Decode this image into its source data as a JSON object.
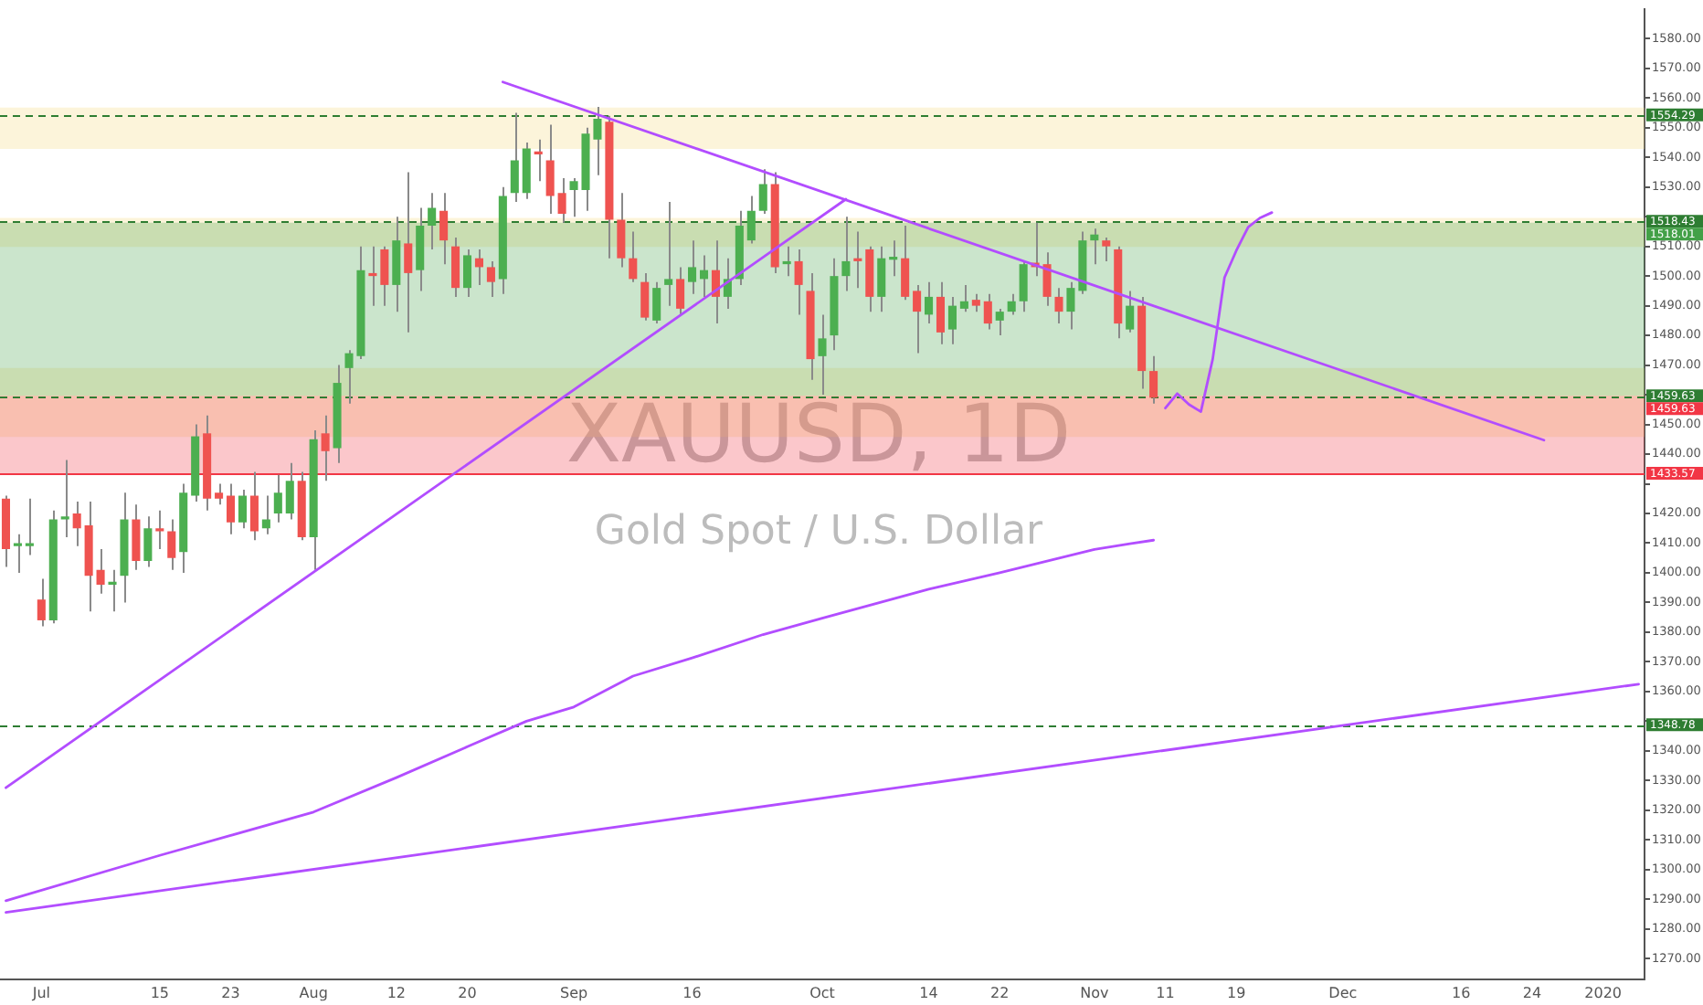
{
  "chart_data": {
    "type": "candlestick",
    "title": "XAUUSD, 1D",
    "subtitle": "Gold Spot / U.S. Dollar",
    "categories": [
      null,
      null,
      null,
      "Jul",
      null,
      null,
      null,
      null,
      null,
      null,
      null,
      null,
      null,
      "15",
      null,
      null,
      null,
      null,
      null,
      "23",
      null,
      null,
      null,
      null,
      null,
      null,
      "Aug",
      null,
      null,
      null,
      null,
      null,
      null,
      "12",
      null,
      null,
      null,
      null,
      null,
      "20",
      null,
      null,
      null,
      null,
      null,
      null,
      null,
      null,
      "Sep",
      null,
      null,
      null,
      null,
      null,
      null,
      null,
      null,
      null,
      "16",
      null,
      null,
      null,
      null,
      null,
      null,
      null,
      null,
      null,
      null,
      "Oct",
      null,
      null,
      null,
      null,
      null,
      null,
      null,
      null,
      "14",
      null,
      null,
      null,
      null,
      null,
      "22",
      null,
      null,
      null,
      null,
      null,
      null,
      null,
      "Nov",
      null,
      null,
      null,
      null,
      null,
      "11",
      null,
      null,
      null,
      null,
      null,
      "19",
      null,
      null,
      null,
      null,
      null,
      null,
      null,
      null,
      "Dec",
      null,
      null,
      null,
      null,
      null,
      null,
      null,
      null,
      null,
      "16",
      null,
      null,
      null,
      null,
      null,
      "24",
      null,
      null,
      null,
      null,
      null,
      "2020",
      null,
      null,
      null
    ],
    "ohlc": [
      [
        1425,
        1426,
        1402,
        1408
      ],
      [
        1409,
        1413,
        1400,
        1410
      ],
      [
        1409,
        1425,
        1406,
        1410
      ],
      [
        1391,
        1398,
        1382,
        1384
      ],
      [
        1384,
        1421,
        1383,
        1418
      ],
      [
        1418,
        1438,
        1412,
        1419
      ],
      [
        1420,
        1424,
        1409,
        1415
      ],
      [
        1416,
        1424,
        1387,
        1399
      ],
      [
        1401,
        1408,
        1393,
        1396
      ],
      [
        1396,
        1401,
        1387,
        1397
      ],
      [
        1399,
        1427,
        1390,
        1418
      ],
      [
        1418,
        1423,
        1401,
        1404
      ],
      [
        1404,
        1419,
        1402,
        1415
      ],
      [
        1415,
        1421,
        1408,
        1414
      ],
      [
        1414,
        1418,
        1401,
        1405
      ],
      [
        1407,
        1430,
        1400,
        1427
      ],
      [
        1426,
        1450,
        1424,
        1446
      ],
      [
        1447,
        1453,
        1421,
        1425
      ],
      [
        1427,
        1430,
        1423,
        1425
      ],
      [
        1426,
        1430,
        1413,
        1417
      ],
      [
        1417,
        1428,
        1415,
        1426
      ],
      [
        1426,
        1434,
        1411,
        1414
      ],
      [
        1415,
        1426,
        1413,
        1418
      ],
      [
        1420,
        1433,
        1417,
        1427
      ],
      [
        1420,
        1437,
        1418,
        1431
      ],
      [
        1431,
        1434,
        1411,
        1412
      ],
      [
        1412,
        1448,
        1401,
        1445
      ],
      [
        1447,
        1453,
        1431,
        1441
      ],
      [
        1442,
        1470,
        1437,
        1464
      ],
      [
        1469,
        1475,
        1457,
        1474
      ],
      [
        1473,
        1510,
        1472,
        1502
      ],
      [
        1501,
        1510,
        1490,
        1500
      ],
      [
        1509,
        1510,
        1490,
        1497
      ],
      [
        1497,
        1520,
        1488,
        1512
      ],
      [
        1511,
        1535,
        1481,
        1501
      ],
      [
        1502,
        1523,
        1495,
        1517
      ],
      [
        1517,
        1528,
        1509,
        1523
      ],
      [
        1522,
        1528,
        1504,
        1512
      ],
      [
        1510,
        1513,
        1493,
        1496
      ],
      [
        1496,
        1509,
        1493,
        1507
      ],
      [
        1506,
        1509,
        1497,
        1503
      ],
      [
        1503,
        1505,
        1493,
        1498
      ],
      [
        1499,
        1530,
        1494,
        1527
      ],
      [
        1528,
        1555,
        1525,
        1539
      ],
      [
        1528,
        1545,
        1526,
        1543
      ],
      [
        1542,
        1546,
        1532,
        1541
      ],
      [
        1539,
        1551,
        1521,
        1527
      ],
      [
        1528,
        1533,
        1518,
        1521
      ],
      [
        1529,
        1533,
        1520,
        1532
      ],
      [
        1529,
        1550,
        1522,
        1548
      ],
      [
        1546,
        1557,
        1534,
        1553
      ],
      [
        1552,
        1554,
        1506,
        1519
      ],
      [
        1519,
        1528,
        1503,
        1506
      ],
      [
        1506,
        1515,
        1498,
        1499
      ],
      [
        1498,
        1501,
        1485,
        1486
      ],
      [
        1485,
        1498,
        1484,
        1496
      ],
      [
        1497,
        1525,
        1490,
        1499
      ],
      [
        1499,
        1503,
        1487,
        1489
      ],
      [
        1498,
        1512,
        1494,
        1503
      ],
      [
        1499,
        1507,
        1493,
        1502
      ],
      [
        1502,
        1512,
        1484,
        1493
      ],
      [
        1493,
        1506,
        1489,
        1499
      ],
      [
        1499,
        1522,
        1497,
        1517
      ],
      [
        1512,
        1527,
        1511,
        1522
      ],
      [
        1522,
        1536,
        1521,
        1531
      ],
      [
        1531,
        1535,
        1501,
        1503
      ],
      [
        1504,
        1510,
        1500,
        1505
      ],
      [
        1505,
        1509,
        1487,
        1497
      ],
      [
        1495,
        1501,
        1465,
        1472
      ],
      [
        1473,
        1487,
        1460,
        1479
      ],
      [
        1480,
        1506,
        1475,
        1500
      ],
      [
        1500,
        1520,
        1495,
        1505
      ],
      [
        1506,
        1515,
        1496,
        1505
      ],
      [
        1509,
        1510,
        1488,
        1493
      ],
      [
        1493,
        1510,
        1488,
        1506
      ],
      [
        1505.5,
        1512,
        1500,
        1506.5
      ],
      [
        1506,
        1517,
        1492,
        1493
      ],
      [
        1495,
        1497,
        1474,
        1488
      ],
      [
        1487,
        1498,
        1484,
        1493
      ],
      [
        1493,
        1498,
        1477,
        1481
      ],
      [
        1482,
        1493,
        1477,
        1490
      ],
      [
        1489,
        1497,
        1488,
        1491.5
      ],
      [
        1492,
        1494,
        1488,
        1490
      ],
      [
        1491.5,
        1494,
        1482,
        1484
      ],
      [
        1485,
        1489,
        1480,
        1488
      ],
      [
        1488,
        1494,
        1487,
        1491.5
      ],
      [
        1491.5,
        1505,
        1488,
        1504
      ],
      [
        1504.5,
        1518,
        1500,
        1503
      ],
      [
        1504,
        1508,
        1490,
        1493
      ],
      [
        1493,
        1496,
        1484,
        1488
      ],
      [
        1488,
        1498,
        1482,
        1496
      ],
      [
        1495,
        1515,
        1494,
        1512
      ],
      [
        1512,
        1516,
        1504,
        1514
      ],
      [
        1512,
        1513,
        1505,
        1510
      ],
      [
        1509,
        1510,
        1479,
        1484
      ],
      [
        1482,
        1495,
        1481,
        1490
      ],
      [
        1490,
        1493,
        1462,
        1468
      ],
      [
        1468,
        1473,
        1457,
        1459
      ],
      null,
      null,
      null,
      null,
      null,
      null,
      null,
      null,
      null,
      null,
      null,
      null,
      null,
      null,
      null,
      null,
      null,
      null,
      null,
      null,
      null,
      null,
      null,
      null,
      null,
      null,
      null,
      null,
      null,
      null,
      null,
      null,
      null,
      null,
      null,
      null,
      null,
      null,
      null,
      null,
      null
    ],
    "colors": [
      "#ef5350",
      "#4caf50",
      "#4caf50",
      "#ef5350",
      "#4caf50",
      "#4caf50",
      "#ef5350",
      "#ef5350",
      "#ef5350",
      "#4caf50",
      "#4caf50",
      "#ef5350",
      "#4caf50",
      "#ef5350",
      "#ef5350",
      "#4caf50",
      "#4caf50",
      "#ef5350",
      "#ef5350",
      "#ef5350",
      "#4caf50",
      "#ef5350",
      "#4caf50",
      "#4caf50",
      "#4caf50",
      "#ef5350",
      "#4caf50",
      "#ef5350",
      "#4caf50",
      "#4caf50",
      "#4caf50",
      "#ef5350",
      "#ef5350",
      "#4caf50",
      "#ef5350",
      "#4caf50",
      "#4caf50",
      "#ef5350",
      "#ef5350",
      "#4caf50",
      "#ef5350",
      "#ef5350",
      "#4caf50",
      "#4caf50",
      "#4caf50",
      "#ef5350",
      "#ef5350",
      "#ef5350",
      "#4caf50",
      "#4caf50",
      "#4caf50",
      "#ef5350",
      "#ef5350",
      "#ef5350",
      "#ef5350",
      "#4caf50",
      "#4caf50",
      "#ef5350",
      "#4caf50",
      "#4caf50",
      "#ef5350",
      "#4caf50",
      "#4caf50",
      "#4caf50",
      "#4caf50",
      "#ef5350",
      "#4caf50",
      "#ef5350",
      "#ef5350",
      "#4caf50",
      "#4caf50",
      "#4caf50",
      "#ef5350",
      "#ef5350",
      "#4caf50",
      "#4caf50",
      "#ef5350",
      "#ef5350",
      "#4caf50",
      "#ef5350",
      "#4caf50",
      "#4caf50",
      "#ef5350",
      "#ef5350",
      "#4caf50",
      "#4caf50",
      "#4caf50",
      "#ef5350",
      "#ef5350",
      "#ef5350",
      "#4caf50",
      "#4caf50",
      "#4caf50",
      "#ef5350",
      "#ef5350",
      "#4caf50",
      "#ef5350",
      "#ef5350",
      null,
      null,
      null,
      null,
      null,
      null,
      null,
      null,
      null,
      null,
      null,
      null,
      null,
      null,
      null,
      null,
      null,
      null,
      null,
      null,
      null,
      null,
      null,
      null,
      null,
      null,
      null,
      null,
      null,
      null,
      null,
      null,
      null,
      null,
      null,
      null,
      null,
      null,
      null,
      null,
      null
    ],
    "series": [
      {
        "type": "line",
        "color": "#b24dff",
        "values": [
          null,
          null,
          null,
          null,
          null,
          null,
          null,
          null,
          null,
          null,
          null,
          null,
          null,
          null,
          null,
          null,
          null,
          null,
          null,
          null,
          null,
          null,
          null,
          null,
          null,
          null,
          null,
          null,
          null,
          null,
          null,
          null,
          null,
          null,
          null,
          null,
          null,
          null,
          null,
          null,
          null,
          null,
          1565.4,
          null,
          null,
          null,
          null,
          null,
          null,
          null,
          null,
          null,
          null,
          null,
          null,
          null,
          null,
          null,
          null,
          null,
          null,
          null,
          null,
          null,
          null,
          null,
          null,
          null,
          null,
          null,
          null,
          null,
          null,
          null,
          null,
          null,
          null,
          null,
          null,
          null,
          null,
          null,
          null,
          null,
          null,
          null,
          null,
          null,
          null,
          null,
          null,
          null,
          null,
          null,
          null,
          null,
          null,
          null,
          null,
          null,
          null,
          null,
          null,
          null,
          null,
          null,
          null,
          null,
          null,
          null,
          null,
          null,
          null,
          null,
          null,
          null,
          null,
          null,
          null,
          null,
          null,
          null,
          null,
          null,
          null,
          null,
          null,
          null,
          null,
          null,
          1444.7,
          null,
          null,
          null,
          null,
          null,
          null,
          null,
          null
        ]
      },
      {
        "type": "line",
        "color": "#b24dff",
        "values": [
          1327.6,
          null,
          null,
          null,
          null,
          null,
          null,
          null,
          null,
          null,
          null,
          null,
          null,
          null,
          null,
          null,
          null,
          null,
          null,
          null,
          null,
          null,
          null,
          null,
          null,
          null,
          null,
          null,
          null,
          null,
          null,
          null,
          null,
          null,
          null,
          null,
          null,
          null,
          null,
          null,
          null,
          null,
          null,
          null,
          null,
          null,
          null,
          null,
          null,
          null,
          null,
          null,
          null,
          null,
          null,
          null,
          null,
          null,
          null,
          null,
          null,
          null,
          null,
          null,
          null,
          null,
          null,
          null,
          null,
          null,
          null,
          1525.9,
          null,
          null,
          null,
          null,
          null,
          null,
          null,
          null,
          null,
          null,
          null,
          null,
          null,
          null,
          null,
          null,
          null,
          null,
          null,
          null,
          null,
          null,
          null,
          null,
          null,
          null,
          null,
          null,
          null,
          null,
          null,
          null,
          null,
          null,
          null,
          null,
          null,
          null,
          null,
          null,
          null,
          null,
          null,
          null,
          null,
          null,
          null,
          null,
          null,
          null,
          null,
          null,
          null,
          null,
          null,
          null,
          null,
          null,
          null,
          null,
          null,
          null,
          null,
          null,
          null,
          null,
          null
        ]
      },
      {
        "type": "line",
        "color": "#b24dff",
        "values": [
          1285.6,
          null,
          null,
          null,
          null,
          null,
          null,
          null,
          null,
          null,
          null,
          null,
          null,
          null,
          null,
          null,
          null,
          null,
          null,
          null,
          null,
          null,
          null,
          null,
          null,
          null,
          null,
          null,
          null,
          null,
          null,
          null,
          null,
          null,
          null,
          null,
          null,
          null,
          null,
          null,
          null,
          null,
          null,
          null,
          null,
          null,
          null,
          null,
          null,
          null,
          null,
          null,
          null,
          null,
          null,
          null,
          null,
          null,
          null,
          null,
          null,
          null,
          null,
          null,
          null,
          null,
          null,
          null,
          null,
          null,
          null,
          null,
          null,
          null,
          null,
          null,
          null,
          null,
          null,
          null,
          null,
          null,
          null,
          null,
          null,
          null,
          null,
          null,
          null,
          null,
          null,
          null,
          null,
          null,
          null,
          null,
          null,
          null,
          null,
          null,
          null,
          null,
          null,
          null,
          null,
          null,
          null,
          null,
          null,
          null,
          null,
          null,
          null,
          null,
          null,
          null,
          null,
          null,
          null,
          null,
          null,
          null,
          null,
          null,
          null,
          null,
          null,
          null,
          null,
          null,
          null,
          null,
          null,
          null,
          null,
          null,
          null,
          null,
          1362.5
        ]
      },
      {
        "type": "line",
        "color": "#b24dff",
        "values": [
          1289.5,
          null,
          null,
          null,
          null,
          null,
          null,
          null,
          null,
          null,
          null,
          null,
          null,
          1304.8,
          null,
          null,
          null,
          null,
          null,
          1311.5,
          null,
          null,
          null,
          null,
          null,
          null,
          1319.4,
          null,
          null,
          null,
          null,
          null,
          null,
          1331,
          null,
          null,
          null,
          null,
          null,
          1341.4,
          null,
          null,
          null,
          null,
          1350,
          null,
          null,
          null,
          1354.8,
          null,
          null,
          null,
          null,
          1365.2,
          null,
          null,
          null,
          null,
          1371.3,
          null,
          null,
          null,
          null,
          null,
          1379.2,
          null,
          null,
          null,
          null,
          1384.7,
          null,
          null,
          null,
          null,
          null,
          null,
          null,
          null,
          1394.5,
          null,
          null,
          null,
          null,
          null,
          1400,
          null,
          null,
          null,
          null,
          null,
          null,
          null,
          1407.9,
          null,
          null,
          1409.8,
          null,
          1411,
          null,
          null,
          null,
          null,
          null,
          null,
          null,
          null,
          null,
          null,
          null,
          null,
          null,
          null,
          null,
          null,
          null,
          null,
          null,
          null,
          null,
          null,
          null,
          null,
          null,
          null,
          null,
          null,
          null,
          null,
          null,
          null,
          null,
          null,
          null,
          null,
          null,
          null,
          null,
          null,
          null
        ]
      },
      {
        "type": "line",
        "color": "#b24dff",
        "values": [
          null,
          null,
          null,
          null,
          null,
          null,
          null,
          null,
          null,
          null,
          null,
          null,
          null,
          null,
          null,
          null,
          null,
          null,
          null,
          null,
          null,
          null,
          null,
          null,
          null,
          null,
          null,
          null,
          null,
          null,
          null,
          null,
          null,
          null,
          null,
          null,
          null,
          null,
          null,
          null,
          null,
          null,
          null,
          null,
          null,
          null,
          null,
          null,
          null,
          null,
          null,
          null,
          null,
          null,
          null,
          null,
          null,
          null,
          null,
          null,
          null,
          null,
          null,
          null,
          null,
          null,
          null,
          null,
          null,
          null,
          null,
          null,
          null,
          null,
          null,
          null,
          null,
          null,
          null,
          null,
          null,
          null,
          null,
          null,
          null,
          null,
          null,
          null,
          null,
          null,
          null,
          null,
          null,
          null,
          null,
          null,
          null,
          null,
          1455.5,
          1460.4,
          1456.7,
          1454.3,
          1472,
          1499.5,
          1508.6,
          1516.5,
          1519.6,
          1521.4,
          null,
          null,
          null,
          null,
          null,
          null,
          null,
          null,
          null,
          null,
          null,
          null,
          null,
          null,
          null,
          null,
          null,
          null,
          null,
          null,
          null,
          null,
          null,
          null,
          null,
          null,
          null,
          null,
          null,
          null,
          null
        ]
      }
    ],
    "ylim": [
      1263,
      1590
    ],
    "yticks": [
      {
        "value": 1270,
        "label": "1270.00"
      },
      {
        "value": 1280,
        "label": "1280.00"
      },
      {
        "value": 1290,
        "label": "1290.00"
      },
      {
        "value": 1300,
        "label": "1300.00"
      },
      {
        "value": 1310,
        "label": "1310.00"
      },
      {
        "value": 1320,
        "label": "1320.00"
      },
      {
        "value": 1330,
        "label": "1330.00"
      },
      {
        "value": 1340,
        "label": "1340.00"
      },
      {
        "value": 1350,
        "label": null
      },
      {
        "value": 1360,
        "label": "1360.00"
      },
      {
        "value": 1370,
        "label": "1370.00"
      },
      {
        "value": 1380,
        "label": "1380.00"
      },
      {
        "value": 1390,
        "label": "1390.00"
      },
      {
        "value": 1400,
        "label": "1400.00"
      },
      {
        "value": 1410,
        "label": "1410.00"
      },
      {
        "value": 1420,
        "label": "1420.00"
      },
      {
        "value": 1430,
        "label": null
      },
      {
        "value": 1440,
        "label": "1440.00"
      },
      {
        "value": 1450,
        "label": "1450.00"
      },
      {
        "value": 1460,
        "label": null
      },
      {
        "value": 1470,
        "label": "1470.00"
      },
      {
        "value": 1480,
        "label": "1480.00"
      },
      {
        "value": 1490,
        "label": "1490.00"
      },
      {
        "value": 1500,
        "label": "1500.00"
      },
      {
        "value": 1510,
        "label": "1510.00"
      },
      {
        "value": 1520,
        "label": null
      },
      {
        "value": 1530,
        "label": "1530.00"
      },
      {
        "value": 1540,
        "label": "1540.00"
      },
      {
        "value": 1550,
        "label": "1550.00"
      },
      {
        "value": 1560,
        "label": "1560.00"
      },
      {
        "value": 1570,
        "label": "1570.00"
      },
      {
        "value": 1580,
        "label": "1580.00"
      }
    ],
    "bands": [
      {
        "axis": "y",
        "from": 1542.8,
        "to": 1556.8,
        "color": "#f5d77a"
      },
      {
        "axis": "y",
        "from": 1509.8,
        "to": 1519.6,
        "color": "#f5d77a"
      },
      {
        "axis": "y",
        "from": 1445.8,
        "to": 1469,
        "color": "#f5d77a"
      },
      {
        "axis": "y",
        "from": 1518.01,
        "to": 1459.63,
        "label": "1518.01",
        "color": "#43a047"
      },
      {
        "axis": "y",
        "from": 1459.63,
        "to": 1433.57,
        "label": "1459.63",
        "color": "#f23645"
      }
    ],
    "ref_lines": [
      {
        "axis": "y",
        "value": 1554.29,
        "label": "1554.29",
        "color": "#2e7d32",
        "line_style": "dashed"
      },
      {
        "axis": "y",
        "value": 1518.43,
        "label": "1518.43",
        "color": "#2e7d32",
        "line_style": "dashed"
      },
      {
        "axis": "y",
        "value": 1459.63,
        "label": "1459.63",
        "color": "#2e7d32",
        "line_style": "dashed"
      },
      {
        "axis": "y",
        "value": 1433.57,
        "label": "1433.57",
        "color": "#f23645",
        "line_style": "solid"
      },
      {
        "axis": "y",
        "value": 1348.78,
        "label": "1348.78",
        "color": "#2e7d32",
        "line_style": "dashed"
      }
    ]
  }
}
